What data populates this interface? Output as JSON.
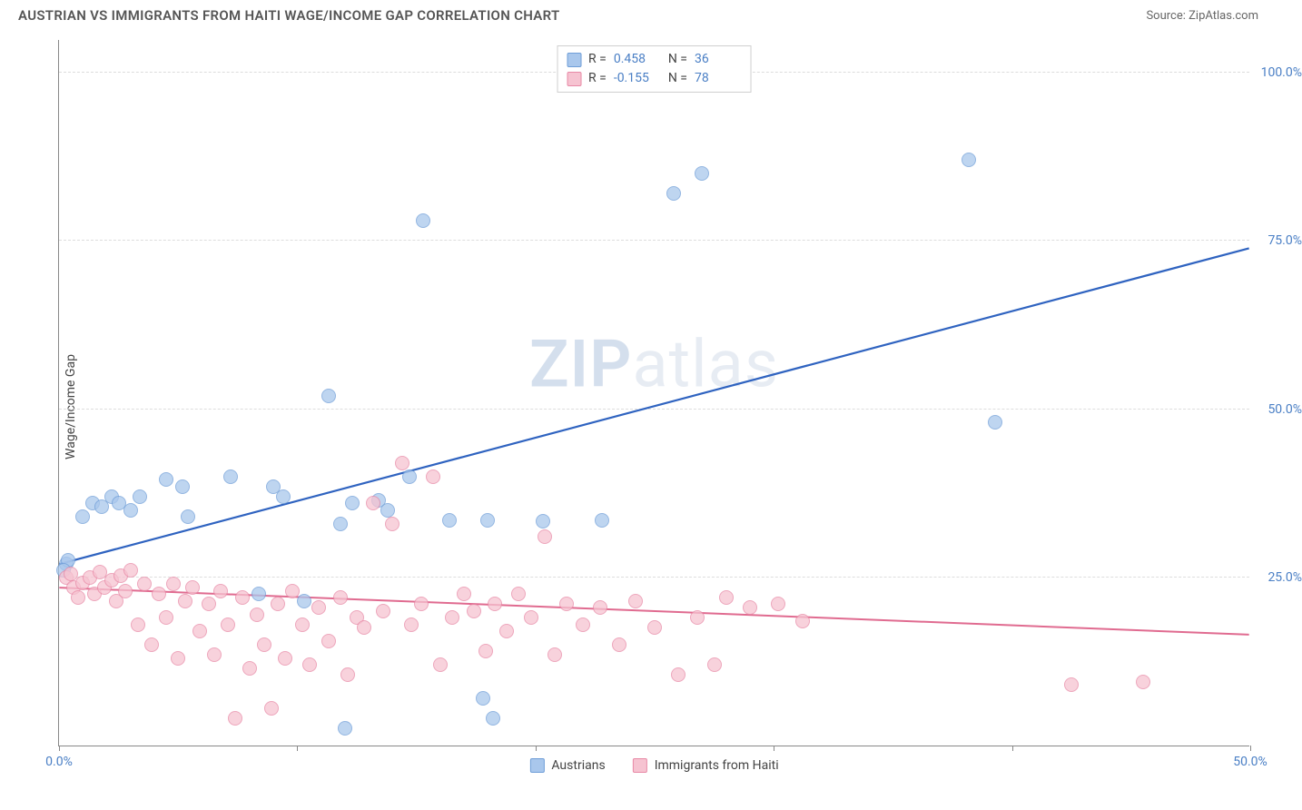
{
  "title": "AUSTRIAN VS IMMIGRANTS FROM HAITI WAGE/INCOME GAP CORRELATION CHART",
  "source_label": "Source:",
  "source_name": "ZipAtlas.com",
  "ylabel": "Wage/Income Gap",
  "watermark_bold": "ZIP",
  "watermark_rest": "atlas",
  "chart": {
    "type": "scatter",
    "background_color": "#ffffff",
    "grid_color": "#dddddd",
    "axis_color": "#888888",
    "label_color": "#4a7fc5",
    "label_fontsize": 14,
    "xlim": [
      0,
      50
    ],
    "ylim": [
      0,
      105
    ],
    "y_ticks": [
      25,
      50,
      75,
      100
    ],
    "y_tick_labels": [
      "25.0%",
      "50.0%",
      "75.0%",
      "100.0%"
    ],
    "x_ticks": [
      0,
      10,
      20,
      30,
      40,
      50
    ],
    "x_tick_labels": [
      "0.0%",
      "",
      "",
      "",
      "",
      "50.0%"
    ],
    "point_radius": 8,
    "point_border_width": 1.2,
    "point_opacity_fill": 0.35,
    "series": [
      {
        "name": "Austrians",
        "fill_color": "#a9c7ec",
        "stroke_color": "#6f9ed8",
        "trend_color": "#2f63c0",
        "trend_width": 2.2,
        "R": "0.458",
        "N": "36",
        "trend": {
          "x1": 0,
          "y1": 27,
          "x2": 50,
          "y2": 74
        },
        "points": [
          [
            0.3,
            27
          ],
          [
            0.4,
            27.5
          ],
          [
            0.2,
            26
          ],
          [
            1.0,
            34
          ],
          [
            1.4,
            36
          ],
          [
            1.8,
            35.5
          ],
          [
            2.2,
            37
          ],
          [
            2.5,
            36
          ],
          [
            3.0,
            35
          ],
          [
            3.4,
            37
          ],
          [
            4.5,
            39.5
          ],
          [
            5.2,
            38.5
          ],
          [
            5.4,
            34
          ],
          [
            7.2,
            40
          ],
          [
            8.4,
            22.5
          ],
          [
            9.0,
            38.5
          ],
          [
            9.4,
            37
          ],
          [
            11.3,
            52
          ],
          [
            11.8,
            33
          ],
          [
            12.0,
            2.5
          ],
          [
            12.3,
            36
          ],
          [
            13.4,
            36.5
          ],
          [
            13.8,
            35
          ],
          [
            14.7,
            40
          ],
          [
            15.3,
            78
          ],
          [
            16.4,
            33.5
          ],
          [
            17.8,
            7
          ],
          [
            18.0,
            33.5
          ],
          [
            18.2,
            4
          ],
          [
            20.3,
            33.3
          ],
          [
            22.8,
            33.5
          ],
          [
            25.8,
            82
          ],
          [
            27.0,
            85
          ],
          [
            38.2,
            87
          ],
          [
            39.3,
            48
          ],
          [
            10.3,
            21.5
          ]
        ]
      },
      {
        "name": "Immigrants from Haiti",
        "fill_color": "#f6c3d1",
        "stroke_color": "#e889a6",
        "trend_color": "#e06b90",
        "trend_width": 2,
        "R": "-0.155",
        "N": "78",
        "trend": {
          "x1": 0,
          "y1": 23.5,
          "x2": 50,
          "y2": 16.5
        },
        "points": [
          [
            0.3,
            25
          ],
          [
            0.5,
            25.5
          ],
          [
            0.6,
            23.5
          ],
          [
            0.8,
            22
          ],
          [
            1.0,
            24.2
          ],
          [
            1.3,
            25
          ],
          [
            1.5,
            22.5
          ],
          [
            1.7,
            25.8
          ],
          [
            1.9,
            23.5
          ],
          [
            2.2,
            24.5
          ],
          [
            2.4,
            21.5
          ],
          [
            2.6,
            25.3
          ],
          [
            2.8,
            23
          ],
          [
            3.0,
            26
          ],
          [
            3.3,
            18
          ],
          [
            3.6,
            24
          ],
          [
            3.9,
            15
          ],
          [
            4.2,
            22.5
          ],
          [
            4.5,
            19
          ],
          [
            4.8,
            24
          ],
          [
            5.0,
            13
          ],
          [
            5.3,
            21.5
          ],
          [
            5.6,
            23.5
          ],
          [
            5.9,
            17
          ],
          [
            6.3,
            21
          ],
          [
            6.5,
            13.5
          ],
          [
            6.8,
            23
          ],
          [
            7.1,
            18
          ],
          [
            7.4,
            4
          ],
          [
            7.7,
            22
          ],
          [
            8.0,
            11.5
          ],
          [
            8.3,
            19.5
          ],
          [
            8.6,
            15
          ],
          [
            8.9,
            5.5
          ],
          [
            9.2,
            21
          ],
          [
            9.5,
            13
          ],
          [
            9.8,
            23
          ],
          [
            10.2,
            18
          ],
          [
            10.5,
            12
          ],
          [
            10.9,
            20.5
          ],
          [
            11.3,
            15.5
          ],
          [
            11.8,
            22
          ],
          [
            12.1,
            10.5
          ],
          [
            12.5,
            19
          ],
          [
            12.8,
            17.5
          ],
          [
            13.2,
            36
          ],
          [
            13.6,
            20
          ],
          [
            14.0,
            33
          ],
          [
            14.4,
            42
          ],
          [
            14.8,
            18
          ],
          [
            15.2,
            21
          ],
          [
            15.7,
            40
          ],
          [
            16.0,
            12
          ],
          [
            16.5,
            19
          ],
          [
            17.0,
            22.5
          ],
          [
            17.4,
            20
          ],
          [
            17.9,
            14
          ],
          [
            18.3,
            21
          ],
          [
            18.8,
            17
          ],
          [
            19.3,
            22.5
          ],
          [
            19.8,
            19
          ],
          [
            20.4,
            31
          ],
          [
            20.8,
            13.5
          ],
          [
            21.3,
            21
          ],
          [
            22.0,
            18
          ],
          [
            22.7,
            20.5
          ],
          [
            23.5,
            15
          ],
          [
            24.2,
            21.5
          ],
          [
            25.0,
            17.5
          ],
          [
            26.0,
            10.5
          ],
          [
            26.8,
            19
          ],
          [
            27.5,
            12
          ],
          [
            28.0,
            22
          ],
          [
            29.0,
            20.5
          ],
          [
            30.2,
            21
          ],
          [
            31.2,
            18.5
          ],
          [
            42.5,
            9
          ],
          [
            45.5,
            9.5
          ]
        ]
      }
    ],
    "legend_bottom": [
      {
        "label": "Austrians",
        "fill": "#a9c7ec",
        "stroke": "#6f9ed8"
      },
      {
        "label": "Immigrants from Haiti",
        "fill": "#f6c3d1",
        "stroke": "#e889a6"
      }
    ]
  }
}
